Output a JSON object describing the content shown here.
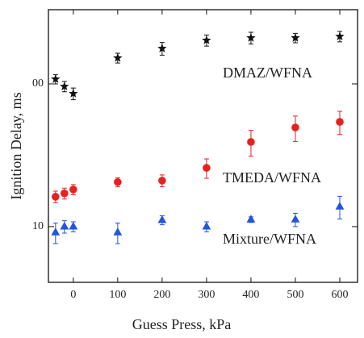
{
  "chart_data": {
    "type": "scatter",
    "x_label": "Guess Press, kPa",
    "y_label": "Ignition Delay, ms",
    "xlim": [
      -56,
      640
    ],
    "xticks": [
      0,
      100,
      200,
      300,
      400,
      500,
      600
    ],
    "ylim": [
      4.07,
      331
    ],
    "yticks": [
      {
        "value": 100,
        "label": "00"
      },
      10
    ],
    "y_scale": "log",
    "series": [
      {
        "name": "DMAZ/WFNA",
        "color": "#111111",
        "marker": "star",
        "x": [
          -40,
          -20,
          0,
          100,
          200,
          300,
          400,
          500,
          600
        ],
        "values": [
          108,
          96,
          85.5,
          152,
          177,
          202,
          210,
          210,
          215
        ],
        "errors": [
          8,
          8,
          8,
          12,
          18,
          18,
          20,
          16,
          18
        ]
      },
      {
        "name": "TMEDA/WFNA",
        "color": "#e82020",
        "marker": "circle",
        "x": [
          -40,
          -20,
          0,
          100,
          200,
          300,
          400,
          500,
          600
        ],
        "values": [
          16.2,
          17.1,
          18.2,
          20.5,
          21.0,
          25.8,
          39.2,
          49.5,
          54.2
        ],
        "errors": [
          1.5,
          1.5,
          1.5,
          1.5,
          2,
          4,
          8,
          10,
          10
        ]
      },
      {
        "name": "Mixture/WFNA",
        "color": "#2255dd",
        "marker": "triangle",
        "x": [
          -40,
          -20,
          0,
          100,
          200,
          300,
          400,
          500,
          600
        ],
        "values": [
          9.1,
          10,
          10,
          9.1,
          11.1,
          10,
          11.2,
          11.2,
          13.8
        ],
        "errors": [
          1.5,
          1,
          0.8,
          1.5,
          0.8,
          0.8,
          0.5,
          1.2,
          2.5
        ]
      }
    ]
  }
}
